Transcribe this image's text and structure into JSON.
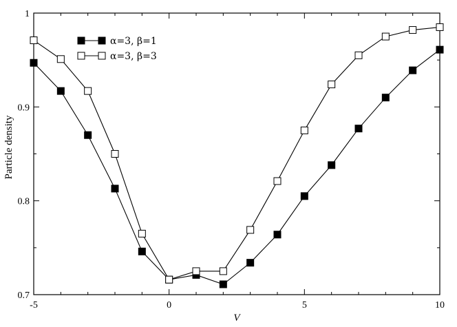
{
  "chart_data": {
    "type": "line",
    "xlabel": "V",
    "ylabel": "Particle density",
    "xlim": [
      -5,
      10
    ],
    "ylim": [
      0.7,
      1.0
    ],
    "xticks": [
      -5,
      0,
      5,
      10
    ],
    "xtick_labels": [
      "-5",
      "0",
      "5",
      "10"
    ],
    "yticks": [
      0.7,
      0.8,
      0.9,
      1.0
    ],
    "ytick_labels": [
      "0.7",
      "0.8",
      "0.9",
      "1"
    ],
    "grid": false,
    "legend_position": "top-left",
    "series": [
      {
        "name": "α=3, β=1",
        "marker": "filled-square",
        "color": "#000000",
        "x": [
          -5,
          -4,
          -3,
          -2,
          -1,
          0,
          1,
          2,
          3,
          4,
          5,
          6,
          7,
          8,
          9,
          10
        ],
        "y": [
          0.947,
          0.917,
          0.87,
          0.813,
          0.746,
          0.716,
          0.721,
          0.711,
          0.734,
          0.764,
          0.805,
          0.838,
          0.877,
          0.91,
          0.939,
          0.961
        ]
      },
      {
        "name": "α=3, β=3",
        "marker": "open-square",
        "color": "#000000",
        "x": [
          -5,
          -4,
          -3,
          -2,
          -1,
          0,
          1,
          2,
          3,
          4,
          5,
          6,
          7,
          8,
          9,
          10
        ],
        "y": [
          0.971,
          0.951,
          0.917,
          0.85,
          0.765,
          0.716,
          0.725,
          0.725,
          0.769,
          0.821,
          0.875,
          0.924,
          0.955,
          0.975,
          0.982,
          0.985
        ]
      }
    ]
  }
}
